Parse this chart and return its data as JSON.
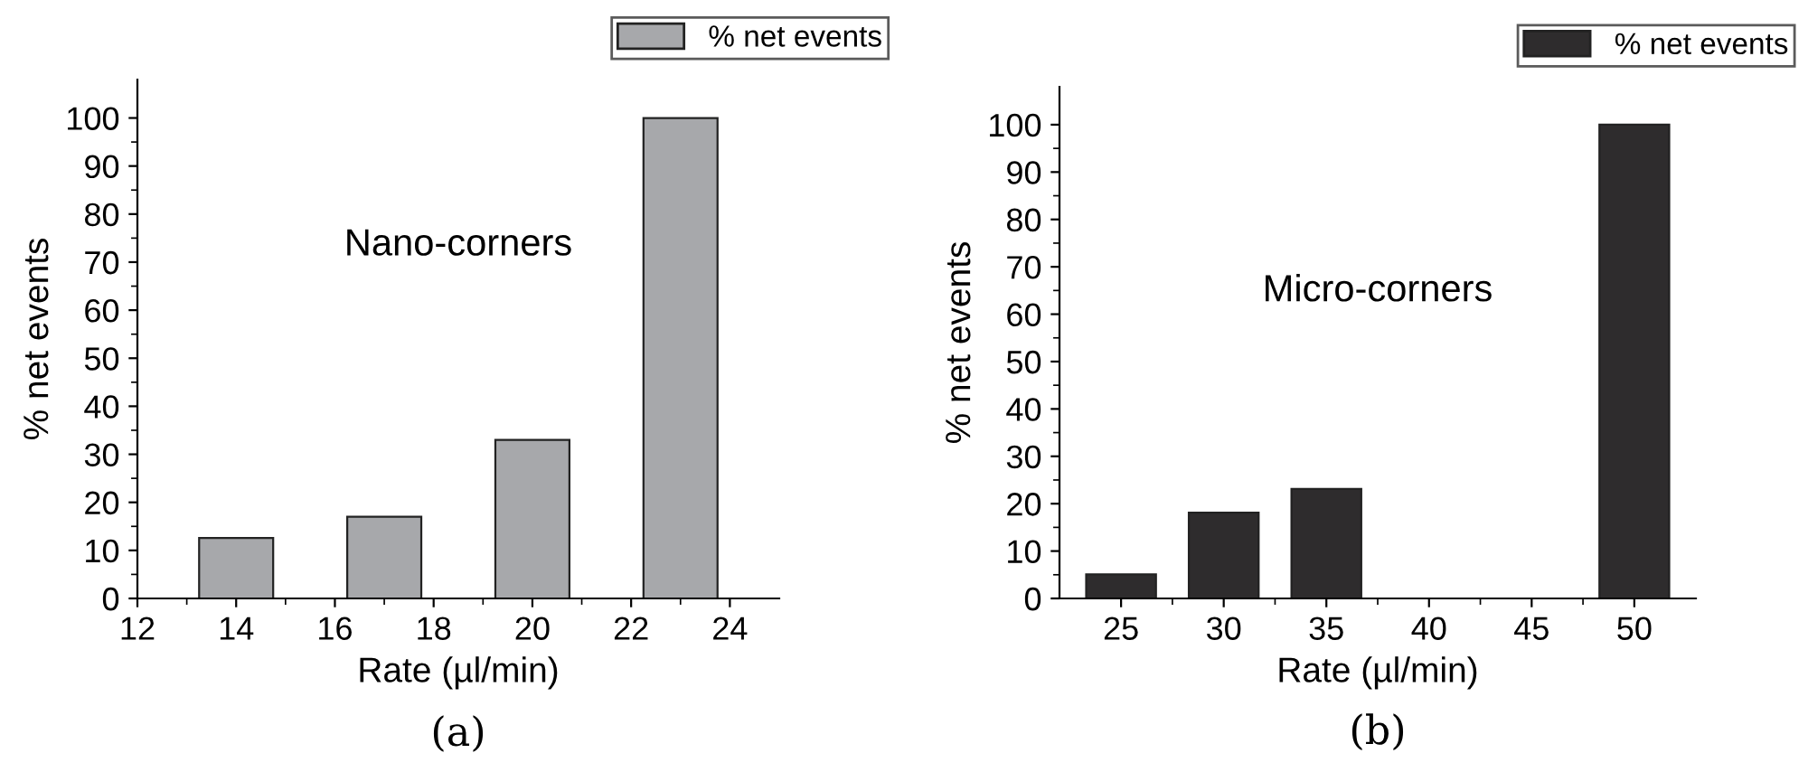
{
  "chart_data": [
    {
      "type": "bar",
      "xlabel": "Rate (µl/min)",
      "ylabel": "% net events",
      "x": [
        14,
        17,
        20,
        23
      ],
      "series": [
        {
          "name": "% net events",
          "color": "#a7a8ab",
          "values": [
            12.6,
            17,
            33,
            100
          ]
        }
      ],
      "xlim": [
        12,
        25
      ],
      "xticks": [
        12,
        14,
        16,
        18,
        20,
        22,
        24
      ],
      "ylim": [
        0,
        108
      ],
      "yticks": [
        0,
        10,
        20,
        30,
        40,
        50,
        60,
        70,
        80,
        90,
        100
      ],
      "legend": "top right",
      "grid": false,
      "annotations": [
        "Nano-corners",
        "(a)"
      ]
    },
    {
      "type": "bar",
      "xlabel": "Rate (µl/min)",
      "ylabel": "% net events",
      "x": [
        25,
        30,
        35,
        50
      ],
      "series": [
        {
          "name": "% net events",
          "color": "#2e2c2d",
          "values": [
            5.1,
            18.1,
            23.1,
            100
          ]
        }
      ],
      "xlim": [
        22,
        53
      ],
      "xticks": [
        25,
        30,
        35,
        40,
        45,
        50
      ],
      "ylim": [
        0,
        108
      ],
      "yticks": [
        0,
        10,
        20,
        30,
        40,
        50,
        60,
        70,
        80,
        90,
        100
      ],
      "legend": "top right",
      "grid": false,
      "annotations": [
        "Micro-corners",
        "(b)"
      ]
    }
  ]
}
